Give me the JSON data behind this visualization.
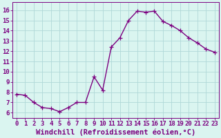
{
  "x": [
    0,
    1,
    2,
    3,
    4,
    5,
    6,
    7,
    8,
    9,
    10,
    11,
    12,
    13,
    14,
    15,
    16,
    17,
    18,
    19,
    20,
    21,
    22,
    23
  ],
  "y": [
    7.8,
    7.7,
    7.0,
    6.5,
    6.4,
    6.1,
    6.5,
    7.0,
    7.0,
    9.5,
    8.2,
    12.4,
    13.3,
    15.0,
    15.9,
    15.8,
    15.9,
    14.9,
    14.5,
    14.0,
    13.3,
    12.8,
    12.2,
    11.9
  ],
  "line_color": "#7B0080",
  "marker": "+",
  "marker_size": 4,
  "linewidth": 1.0,
  "bg_color": "#daf5f0",
  "grid_color": "#b0d8d8",
  "xlabel": "Windchill (Refroidissement éolien,°C)",
  "xlabel_color": "#7B0080",
  "xlabel_fontsize": 7.5,
  "tick_color": "#7B0080",
  "tick_fontsize": 6.5,
  "ylim": [
    5.5,
    16.8
  ],
  "xlim": [
    -0.5,
    23.5
  ],
  "yticks": [
    6,
    7,
    8,
    9,
    10,
    11,
    12,
    13,
    14,
    15,
    16
  ]
}
